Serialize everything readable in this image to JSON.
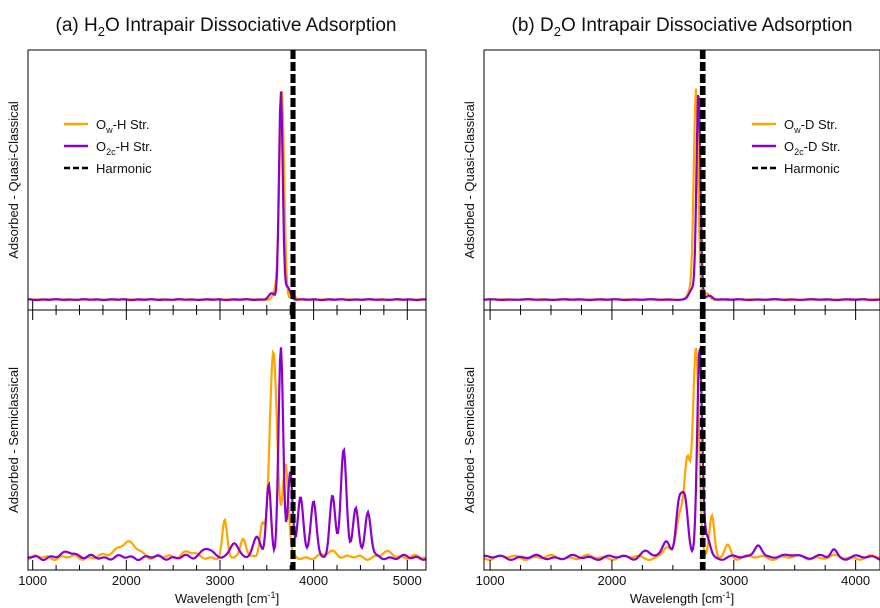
{
  "figure": {
    "panels": [
      {
        "title_prefix": "(a) H",
        "title_sub": "2",
        "title_suffix": "O Intrapair Dissociative Adsorption",
        "xlabel_main": "Wavelength [cm",
        "xlabel_sup": "-1",
        "xlabel_end": "]",
        "top_ylabel": "Adsorbed - Quasi-Classical",
        "bottom_ylabel": "Adsorbed - Semiclassical",
        "legend": [
          {
            "main": "O",
            "sub": "w",
            "rest": "-H Str.",
            "color": "#FFA500",
            "dash": false
          },
          {
            "main": "O",
            "sub": "2c",
            "rest": "-H Str.",
            "color": "#8B00CC",
            "dash": false
          },
          {
            "main": "Harmonic",
            "sub": "",
            "rest": "",
            "color": "#000000",
            "dash": true
          }
        ]
      },
      {
        "title_prefix": "(b) D",
        "title_sub": "2",
        "title_suffix": "O Intrapair Dissociative Adsorption",
        "xlabel_main": "Wavelength [cm",
        "xlabel_sup": "-1",
        "xlabel_end": "]",
        "top_ylabel": "Adsorbed - Quasi-Classical",
        "bottom_ylabel": "Adsorbed - Semiclassical",
        "legend": [
          {
            "main": "O",
            "sub": "w",
            "rest": "-D Str.",
            "color": "#FFA500",
            "dash": false
          },
          {
            "main": "O",
            "sub": "2c",
            "rest": "-D Str.",
            "color": "#8B00CC",
            "dash": false
          },
          {
            "main": "Harmonic",
            "sub": "",
            "rest": "",
            "color": "#000000",
            "dash": true
          }
        ]
      }
    ]
  },
  "chart_data": [
    {
      "type": "line",
      "title": "(a) H2O Intrapair Dissociative Adsorption",
      "xlabel": "Wavelength [cm-1]",
      "xlim": [
        950,
        5200
      ],
      "xticks": [
        1000,
        2000,
        3000,
        4000,
        5000
      ],
      "harmonic_lines": [
        3770,
        3790
      ],
      "top": {
        "ylabel": "Adsorbed - Quasi-Classical",
        "series": [
          {
            "name": "Ow-H Str.",
            "color": "#FFA500",
            "peaks": [
              [
                3660,
                1.0,
                25
              ],
              [
                3600,
                0.05,
                30
              ],
              [
                3780,
                0.03,
                20
              ]
            ]
          },
          {
            "name": "O2c-H Str.",
            "color": "#8B00CC",
            "peaks": [
              [
                3650,
                1.0,
                20
              ],
              [
                3720,
                0.06,
                30
              ],
              [
                3550,
                0.03,
                30
              ]
            ]
          }
        ]
      },
      "bottom": {
        "ylabel": "Adsorbed - Semiclassical",
        "series": [
          {
            "name": "Ow-H Str.",
            "color": "#FFA500",
            "peaks": [
              [
                3570,
                1.0,
                40
              ],
              [
                3700,
                0.45,
                30
              ],
              [
                3050,
                0.17,
                25
              ],
              [
                3250,
                0.1,
                30
              ],
              [
                3450,
                0.15,
                25
              ],
              [
                2000,
                0.07,
                110
              ],
              [
                2650,
                0.03,
                60
              ],
              [
                4200,
                0.03,
                60
              ],
              [
                4800,
                0.02,
                80
              ]
            ]
          },
          {
            "name": "O2c-H Str.",
            "color": "#8B00CC",
            "peaks": [
              [
                3650,
                1.0,
                25
              ],
              [
                3520,
                0.35,
                25
              ],
              [
                3750,
                0.42,
                25
              ],
              [
                4320,
                0.52,
                30
              ],
              [
                3860,
                0.3,
                30
              ],
              [
                4000,
                0.27,
                30
              ],
              [
                4200,
                0.3,
                30
              ],
              [
                4450,
                0.25,
                30
              ],
              [
                4580,
                0.22,
                30
              ],
              [
                3150,
                0.08,
                40
              ],
              [
                3400,
                0.1,
                40
              ],
              [
                1400,
                0.03,
                60
              ],
              [
                2850,
                0.05,
                50
              ]
            ]
          }
        ]
      }
    },
    {
      "type": "line",
      "title": "(b) D2O Intrapair Dissociative Adsorption",
      "xlabel": "Wavelength [cm-1]",
      "xlim": [
        950,
        4200
      ],
      "xticks": [
        1000,
        2000,
        3000,
        4000
      ],
      "harmonic_lines": [
        2735,
        2755
      ],
      "top": {
        "ylabel": "Adsorbed - Quasi-Classical",
        "series": [
          {
            "name": "Ow-D Str.",
            "color": "#FFA500",
            "peaks": [
              [
                2690,
                1.0,
                18
              ],
              [
                2650,
                0.05,
                25
              ],
              [
                2780,
                0.03,
                20
              ]
            ]
          },
          {
            "name": "O2c-D Str.",
            "color": "#8B00CC",
            "peaks": [
              [
                2710,
                1.0,
                16
              ],
              [
                2660,
                0.05,
                25
              ],
              [
                2800,
                0.02,
                25
              ]
            ]
          }
        ]
      },
      "bottom": {
        "ylabel": "Adsorbed - Semiclassical",
        "series": [
          {
            "name": "Ow-D Str.",
            "color": "#FFA500",
            "peaks": [
              [
                2690,
                1.0,
                25
              ],
              [
                2620,
                0.45,
                25
              ],
              [
                2820,
                0.19,
                20
              ],
              [
                2560,
                0.2,
                30
              ],
              [
                2950,
                0.06,
                25
              ],
              [
                2450,
                0.05,
                30
              ]
            ]
          },
          {
            "name": "O2c-D Str.",
            "color": "#8B00CC",
            "peaks": [
              [
                2720,
                1.0,
                20
              ],
              [
                2600,
                0.27,
                25
              ],
              [
                2550,
                0.25,
                25
              ],
              [
                2450,
                0.08,
                30
              ],
              [
                2780,
                0.1,
                25
              ],
              [
                3200,
                0.07,
                30
              ],
              [
                3820,
                0.04,
                25
              ],
              [
                2280,
                0.03,
                40
              ],
              [
                3500,
                0.02,
                40
              ]
            ]
          }
        ]
      }
    }
  ]
}
